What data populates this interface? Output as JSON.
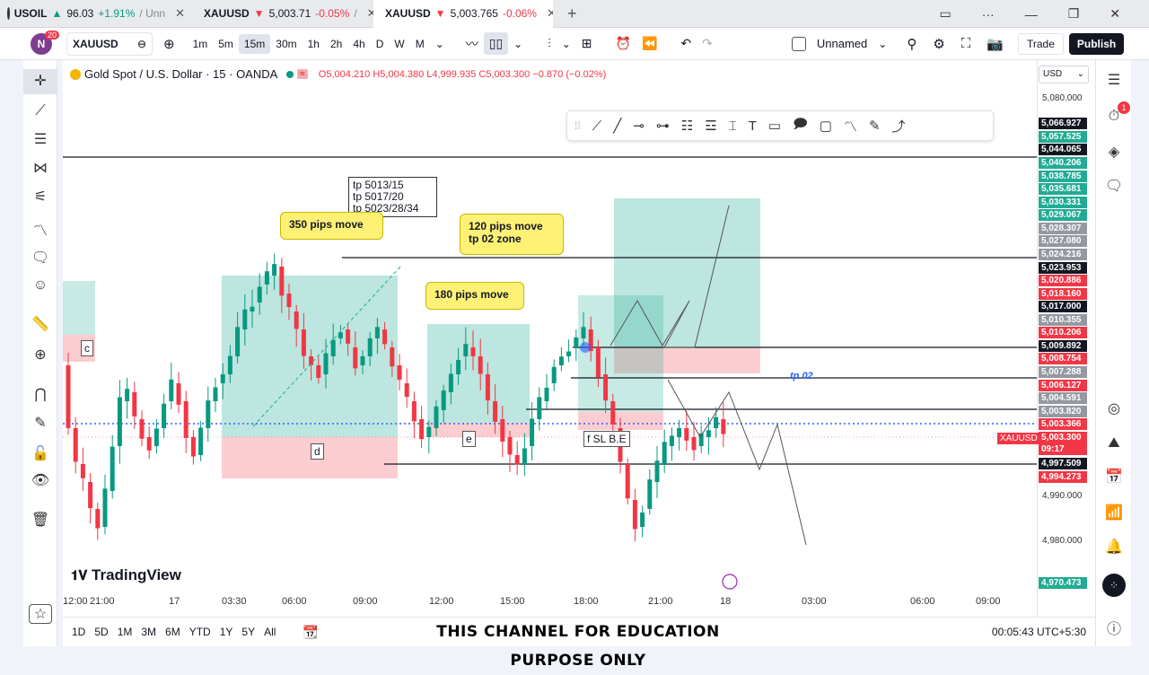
{
  "tabs": [
    {
      "symbol": "USOIL",
      "dir": "▲",
      "price": "96.03",
      "change": "+1.91%",
      "extra": "/ Unn",
      "trend": "up"
    },
    {
      "symbol": "XAUUSD",
      "dir": "▼",
      "price": "5,003.71",
      "change": "-0.05%",
      "extra": "/",
      "trend": "down"
    },
    {
      "symbol": "XAUUSD",
      "dir": "▼",
      "price": "5,003.765",
      "change": "-0.06%",
      "extra": "",
      "trend": "down"
    }
  ],
  "toolbar": {
    "avatar": "N",
    "avatar_badge": "20",
    "symbol": "XAUUSD",
    "intervals": [
      "1m",
      "5m",
      "15m",
      "30m",
      "1h",
      "2h",
      "4h",
      "D",
      "W",
      "M"
    ],
    "selected_interval": "15m",
    "layout_name": "Unnamed",
    "trade": "Trade",
    "publish": "Publish"
  },
  "legend": {
    "title": "Gold Spot / U.S. Dollar · 15 · OANDA",
    "ohlc": "O5,004.210 H5,004.380 L4,999.935 C5,003.300 −0.870 (−0.02%)"
  },
  "price_scale": {
    "currency": "USD",
    "ticks": [
      "5,080.000",
      "4,990.000",
      "4,980.000"
    ],
    "labels": [
      {
        "v": "5,066.927",
        "c": "#131722"
      },
      {
        "v": "5,057.525",
        "c": "#22ab94"
      },
      {
        "v": "5,044.065",
        "c": "#131722"
      },
      {
        "v": "5,040.206",
        "c": "#22ab94"
      },
      {
        "v": "5,038.785",
        "c": "#22ab94"
      },
      {
        "v": "5,035.681",
        "c": "#22ab94"
      },
      {
        "v": "5,030.331",
        "c": "#22ab94"
      },
      {
        "v": "5,029.067",
        "c": "#22ab94"
      },
      {
        "v": "5,028.307",
        "c": "#9598a1"
      },
      {
        "v": "5,027.080",
        "c": "#9598a1"
      },
      {
        "v": "5,024.216",
        "c": "#9598a1"
      },
      {
        "v": "5,023.953",
        "c": "#131722"
      },
      {
        "v": "5,020.886",
        "c": "#f23645"
      },
      {
        "v": "5,018.160",
        "c": "#f23645"
      },
      {
        "v": "5,017.000",
        "c": "#131722"
      },
      {
        "v": "5,010.355",
        "c": "#9598a1"
      },
      {
        "v": "5,010.206",
        "c": "#f23645"
      },
      {
        "v": "5,009.892",
        "c": "#131722"
      },
      {
        "v": "5,008.754",
        "c": "#f23645"
      },
      {
        "v": "5,007.288",
        "c": "#9598a1"
      },
      {
        "v": "5,006.127",
        "c": "#f23645"
      },
      {
        "v": "5,004.591",
        "c": "#9598a1"
      },
      {
        "v": "5,003.820",
        "c": "#9598a1"
      },
      {
        "v": "5,003.366",
        "c": "#f23645"
      },
      {
        "v": "5,003.300",
        "c": "#f23645"
      },
      {
        "v": "09:17",
        "c": "#f23645"
      },
      {
        "v": "4,997.509",
        "c": "#131722"
      },
      {
        "v": "4,994.273",
        "c": "#f23645"
      },
      {
        "v": "4,970.473",
        "c": "#22ab94"
      }
    ],
    "symbol_tag": "XAUUSD"
  },
  "time_axis": [
    "21:00",
    "17",
    "03:30",
    "06:00",
    "09:00",
    "12:00",
    "15:00",
    "18:00",
    "21:00",
    "18",
    "03:00",
    "06:00",
    "09:00",
    "12:00"
  ],
  "annotations": {
    "tp_note": [
      "tp 5013/15",
      "tp 5017/20",
      "tp 5023/28/34"
    ],
    "callout_350": "350 pips move",
    "callout_180": "180 pips move",
    "callout_120": [
      "120 pips move",
      "tp 02 zone"
    ],
    "tp02": "tp 02",
    "tag_c": "c",
    "tag_d": "d",
    "tag_e": "e",
    "sl_note": "f SL B.E"
  },
  "branding": "TradingView",
  "bottom": {
    "ranges": [
      "1D",
      "5D",
      "1M",
      "3M",
      "6M",
      "YTD",
      "1Y",
      "5Y",
      "All"
    ],
    "clock": "00:05:43 UTC+5:30",
    "banner": "THIS CHANNEL FOR EDUCATION PURPOSE ONLY"
  },
  "right_badge": "1",
  "chart_data": {
    "type": "candlestick",
    "symbol": "XAUUSD",
    "interval": "15",
    "last_close": 5003.3,
    "y_range": [
      4965,
      5085
    ]
  }
}
